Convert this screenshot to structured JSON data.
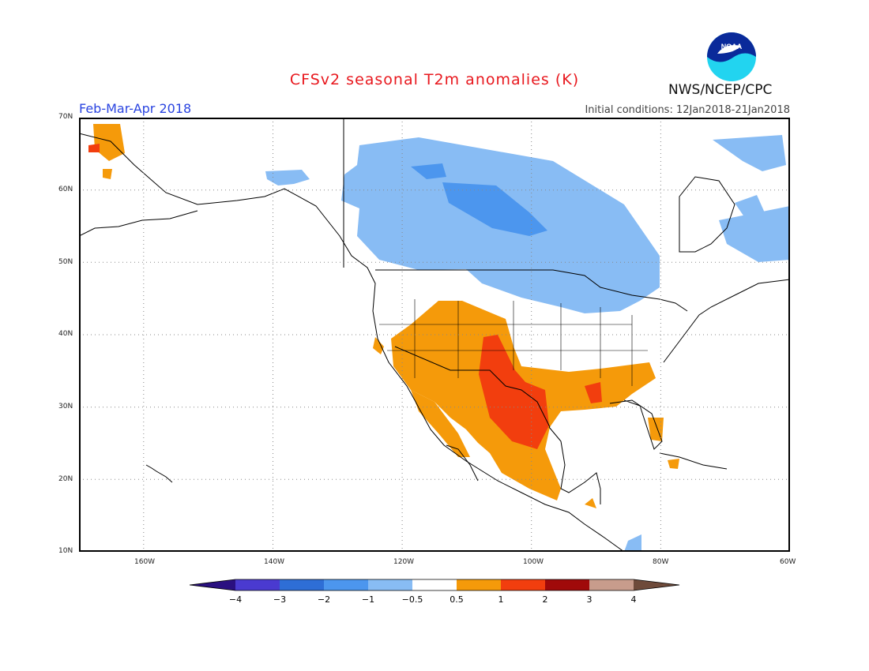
{
  "header": {
    "title": "CFSv2 seasonal T2m anomalies (K)",
    "period": "Feb-Mar-Apr 2018",
    "initial_conditions": "Initial conditions: 12Jan2018-21Jan2018",
    "agency": "NWS/NCEP/CPC",
    "logo_text": "NOAA"
  },
  "map": {
    "lat_labels": [
      "70N",
      "60N",
      "50N",
      "40N",
      "30N",
      "20N",
      "10N"
    ],
    "lon_labels": [
      "160W",
      "140W",
      "120W",
      "100W",
      "80W",
      "60W"
    ],
    "colors": {
      "le_-4": "#2a1080",
      "-4_-3": "#4a3ad0",
      "-3_-2": "#2e6ed6",
      "-2_-1": "#4c96ee",
      "-1_-0.5": "#88bcf4",
      "-0.5_0.5": "#ffffff",
      "0.5_1": "#f59a0a",
      "1_2": "#f23e0e",
      "2_3": "#a00a0a",
      "3_4": "#c89c8c",
      "ge_4": "#6e4a3a"
    }
  },
  "colorbar": {
    "ticks": [
      "−4",
      "−3",
      "−2",
      "−1",
      "−0.5",
      "0.5",
      "1",
      "2",
      "3",
      "4"
    ]
  }
}
